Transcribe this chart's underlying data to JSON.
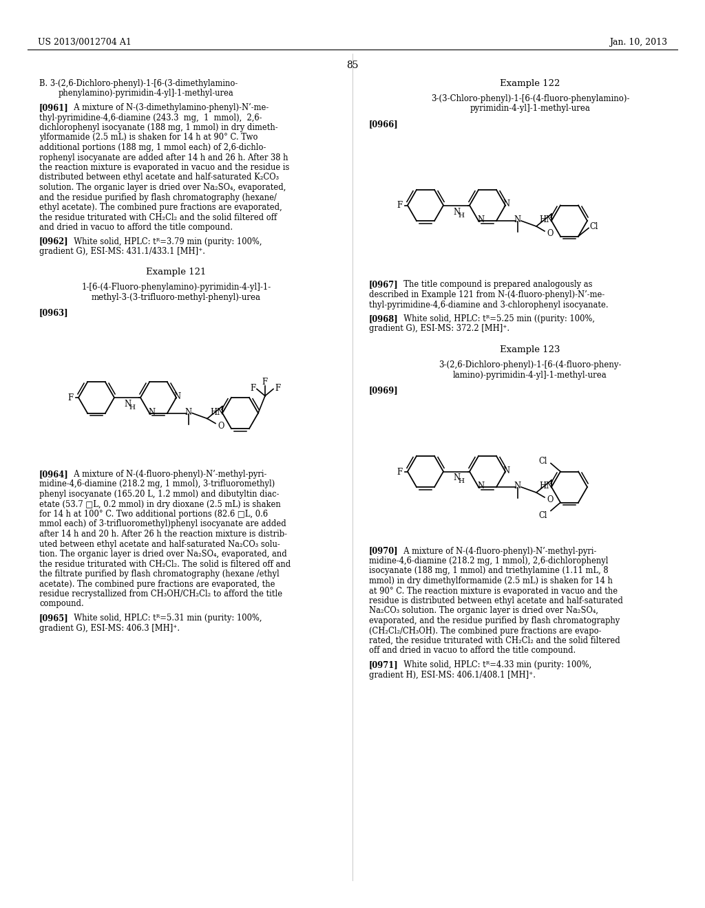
{
  "background_color": "#ffffff",
  "page_number": "85",
  "header_left": "US 2013/0012704 A1",
  "header_right": "Jan. 10, 2013",
  "left_col": {
    "section_b_line1": "B. 3-(2,6-Dichloro-phenyl)-1-[6-(3-dimethylamino-",
    "section_b_line2": "phenylamino)-pyrimidin-4-yl]-1-methyl-urea",
    "p0961_lines": [
      "[0961]   A mixture of N-(3-dimethylamino-phenyl)-N’-me-",
      "thyl-pyrimidine-4,6-diamine (243.3  mg,  1  mmol),  2,6-",
      "dichlorophenyl isocyanate (188 mg, 1 mmol) in dry dimeth-",
      "ylformamide (2.5 mL) is shaken for 14 h at 90° C. Two",
      "additional portions (188 mg, 1 mmol each) of 2,6-dichlo-",
      "rophenyl isocyanate are added after 14 h and 26 h. After 38 h",
      "the reaction mixture is evaporated in vacuo and the residue is",
      "distributed between ethyl acetate and half-saturated K₂CO₃",
      "solution. The organic layer is dried over Na₂SO₄, evaporated,",
      "and the residue purified by flash chromatography (hexane/",
      "ethyl acetate). The combined pure fractions are evaporated,",
      "the residue triturated with CH₂Cl₂ and the solid filtered off",
      "and dried in vacuo to afford the title compound."
    ],
    "p0962_lines": [
      "[0962]   White solid, HPLC: tᴿ=3.79 min (purity: 100%,",
      "gradient G), ESI-MS: 431.1/433.1 [MH]⁺."
    ],
    "ex121_title": "Example 121",
    "ex121_name_lines": [
      "1-[6-(4-Fluoro-phenylamino)-pyrimidin-4-yl]-1-",
      "methyl-3-(3-trifluoro-methyl-phenyl)-urea"
    ],
    "p0963": "[0963]",
    "p0964_lines": [
      "[0964]   A mixture of N-(4-fluoro-phenyl)-N’-methyl-pyri-",
      "midine-4,6-diamine (218.2 mg, 1 mmol), 3-trifluoromethyl)",
      "phenyl isocyanate (165.20 L, 1.2 mmol) and dibutyltin diac-",
      "etate (53.7 □L, 0.2 mmol) in dry dioxane (2.5 mL) is shaken",
      "for 14 h at 100° C. Two additional portions (82.6 □L, 0.6",
      "mmol each) of 3-trifluoromethyl)phenyl isocyanate are added",
      "after 14 h and 20 h. After 26 h the reaction mixture is distrib-",
      "uted between ethyl acetate and half-saturated Na₂CO₃ solu-",
      "tion. The organic layer is dried over Na₂SO₄, evaporated, and",
      "the residue triturated with CH₂Cl₂. The solid is filtered off and",
      "the filtrate purified by flash chromatography (hexane /ethyl",
      "acetate). The combined pure fractions are evaporated, the",
      "residue recrystallized from CH₃OH/CH₂Cl₂ to afford the title",
      "compound."
    ],
    "p0965_lines": [
      "[0965]   White solid, HPLC: tᴿ=5.31 min (purity: 100%,",
      "gradient G), ESI-MS: 406.3 [MH]⁺."
    ]
  },
  "right_col": {
    "ex122_title": "Example 122",
    "ex122_name_lines": [
      "3-(3-Chloro-phenyl)-1-[6-(4-fluoro-phenylamino)-",
      "pyrimidin-4-yl]-1-methyl-urea"
    ],
    "p0966": "[0966]",
    "p0967_lines": [
      "[0967]   The title compound is prepared analogously as",
      "described in Example 121 from N-(4-fluoro-phenyl)-N’-me-",
      "thyl-pyrimidine-4,6-diamine and 3-chlorophenyl isocyanate."
    ],
    "p0968_lines": [
      "[0968]   White solid, HPLC: tᴿ=5.25 min ((purity: 100%,",
      "gradient G), ESI-MS: 372.2 [MH]⁺."
    ],
    "ex123_title": "Example 123",
    "ex123_name_lines": [
      "3-(2,6-Dichloro-phenyl)-1-[6-(4-fluoro-pheny-",
      "lamino)-pyrimidin-4-yl]-1-methyl-urea"
    ],
    "p0969": "[0969]",
    "p0970_lines": [
      "[0970]   A mixture of N-(4-fluoro-phenyl)-N’-methyl-pyri-",
      "midine-4,6-diamine (218.2 mg, 1 mmol), 2,6-dichlorophenyl",
      "isocyanate (188 mg, 1 mmol) and triethylamine (1.11 mL, 8",
      "mmol) in dry dimethylformamide (2.5 mL) is shaken for 14 h",
      "at 90° C. The reaction mixture is evaporated in vacuo and the",
      "residue is distributed between ethyl acetate and half-saturated",
      "Na₂CO₃ solution. The organic layer is dried over Na₂SO₄,",
      "evaporated, and the residue purified by flash chromatography",
      "(CH₂Cl₂/CH₃OH). The combined pure fractions are evapo-",
      "rated, the residue triturated with CH₂Cl₂ and the solid filtered",
      "off and dried in vacuo to afford the title compound."
    ],
    "p0971_lines": [
      "[0971]   White solid, HPLC: tᴿ=4.33 min (purity: 100%,",
      "gradient H), ESI-MS: 406.1/408.1 [MH]⁺."
    ]
  }
}
